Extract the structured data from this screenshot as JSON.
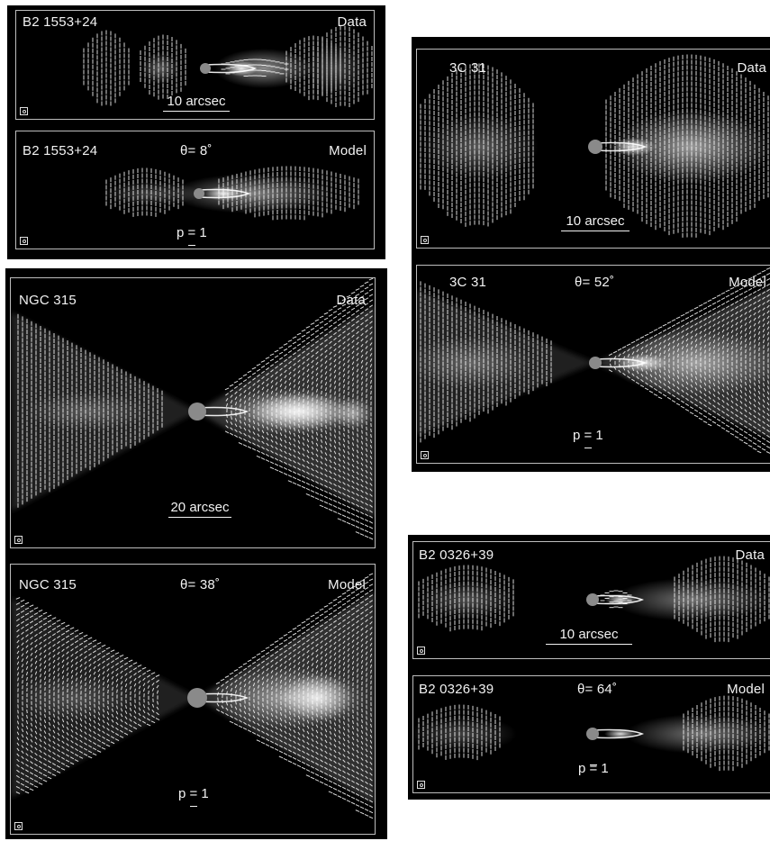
{
  "figure": {
    "sources": [
      {
        "id": "b2-1553",
        "data_panel": {
          "name": "B2 1553+24",
          "tag": "Data",
          "scale_bar": "10 arcsec"
        },
        "model_panel": {
          "name": "B2 1553+24",
          "theta": "θ= 8˚",
          "tag": "Model",
          "pol_key": "p = 1"
        }
      },
      {
        "id": "ngc-315",
        "data_panel": {
          "name": "NGC 315",
          "tag": "Data",
          "scale_bar": "20 arcsec"
        },
        "model_panel": {
          "name": "NGC 315",
          "theta": "θ= 38˚",
          "tag": "Model",
          "pol_key": "p = 1"
        }
      },
      {
        "id": "3c-31",
        "data_panel": {
          "name": "3C 31",
          "tag": "Data",
          "scale_bar": "10 arcsec"
        },
        "model_panel": {
          "name": "3C 31",
          "theta": "θ= 52˚",
          "tag": "Model",
          "pol_key": "p = 1"
        }
      },
      {
        "id": "b2-0326",
        "data_panel": {
          "name": "B2 0326+39",
          "tag": "Data",
          "scale_bar": "10 arcsec"
        },
        "model_panel": {
          "name": "B2 0326+39",
          "theta": "θ= 64˚",
          "tag": "Model",
          "pol_key": "p = 1"
        }
      }
    ],
    "colors": {
      "background": "#000000",
      "frame": "#bdbdbd",
      "text": "#f2f2f2",
      "vectors": "#ffffff"
    },
    "icons": {
      "beam": "beam-ellipse-icon"
    }
  }
}
